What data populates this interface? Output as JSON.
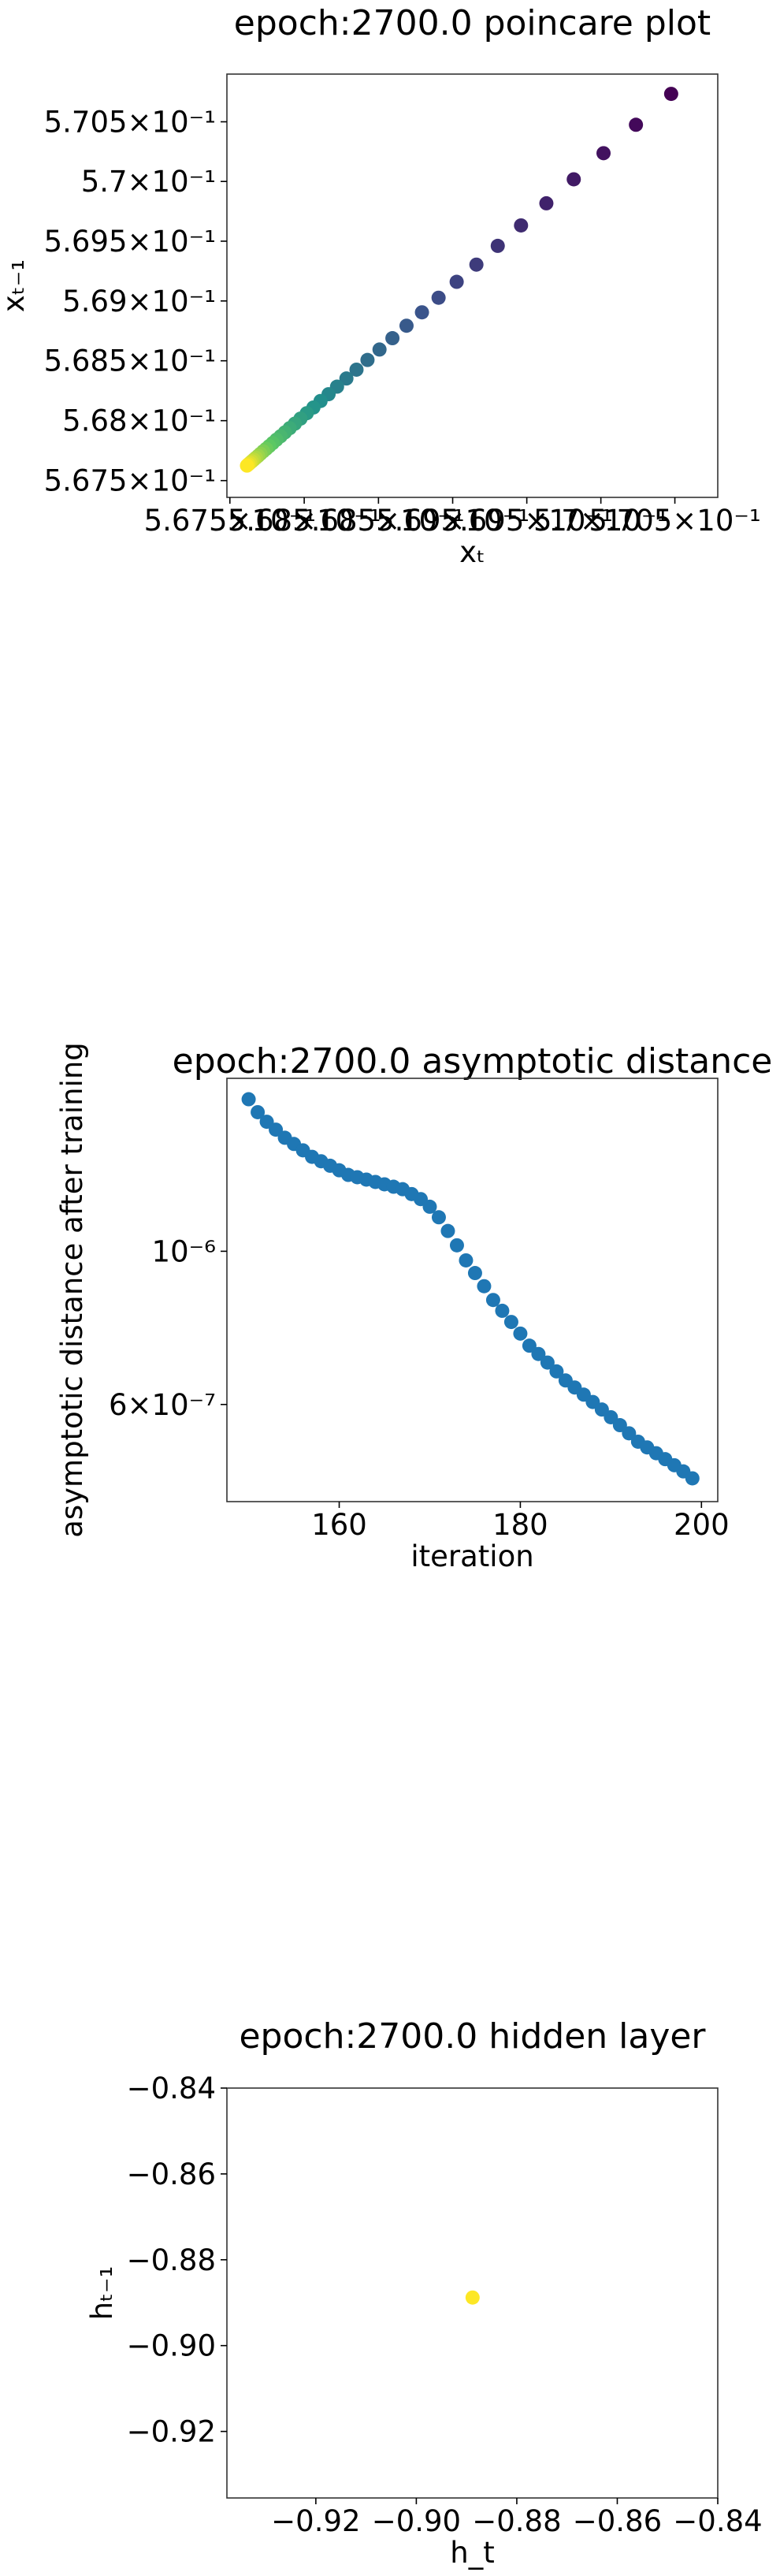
{
  "chart_data": [
    {
      "type": "scatter",
      "title": "epoch:2700.0 poincare plot",
      "x_label": "xₜ",
      "y_label": "xₜ₋₁",
      "colormap": "viridis",
      "xlog": true,
      "ylog": true,
      "x": [
        0.570475,
        0.570237,
        0.570018,
        0.569817,
        0.569632,
        0.569461,
        0.569304,
        0.56916,
        0.569027,
        0.568905,
        0.568793,
        0.568689,
        0.568594,
        0.568507,
        0.568426,
        0.568352,
        0.568284,
        0.568221,
        0.568164,
        0.56811,
        0.568062,
        0.568017,
        0.567975,
        0.567937,
        0.567902,
        0.56787,
        0.567841,
        0.567813,
        0.567788,
        0.567765,
        0.567744,
        0.567724,
        0.567706,
        0.56769,
        0.567675,
        0.567661,
        0.567648,
        0.567636,
        0.567625,
        0.567615
      ],
      "values": [
        0.570734,
        0.570475,
        0.570237,
        0.570018,
        0.569817,
        0.569632,
        0.569461,
        0.569304,
        0.56916,
        0.569027,
        0.568905,
        0.568793,
        0.568689,
        0.568594,
        0.568507,
        0.568426,
        0.568352,
        0.568284,
        0.568221,
        0.568164,
        0.56811,
        0.568062,
        0.568017,
        0.567975,
        0.567937,
        0.567902,
        0.56787,
        0.567841,
        0.567813,
        0.567788,
        0.567765,
        0.567744,
        0.567724,
        0.567706,
        0.56769,
        0.567675,
        0.567661,
        0.567648,
        0.567636,
        0.567625
      ],
      "xlim": [
        0.56748,
        0.57079
      ],
      "ylim": [
        0.56736,
        0.5709
      ],
      "xticks": [
        {
          "value": 0.5675,
          "label": "5.675×10⁻¹"
        },
        {
          "value": 0.568,
          "label": "5.68×10⁻¹"
        },
        {
          "value": 0.5685,
          "label": "5.685×10⁻¹"
        },
        {
          "value": 0.569,
          "label": "5.69×10⁻¹"
        },
        {
          "value": 0.5695,
          "label": "5.695×10⁻¹"
        },
        {
          "value": 0.57,
          "label": "5.7×10⁻¹"
        },
        {
          "value": 0.5705,
          "label": "5.705×10⁻¹"
        }
      ],
      "yticks": [
        {
          "value": 0.5675,
          "label": "5.675×10⁻¹"
        },
        {
          "value": 0.568,
          "label": "5.68×10⁻¹"
        },
        {
          "value": 0.5685,
          "label": "5.685×10⁻¹"
        },
        {
          "value": 0.569,
          "label": "5.69×10⁻¹"
        },
        {
          "value": 0.5695,
          "label": "5.695×10⁻¹"
        },
        {
          "value": 0.57,
          "label": "5.7×10⁻¹"
        },
        {
          "value": 0.5705,
          "label": "5.705×10⁻¹"
        }
      ]
    },
    {
      "type": "scatter",
      "title": "epoch:2700.0 asymptotic distance",
      "x_label": "iteration",
      "y_label": "asymptotic distance after training",
      "color": "#1f77b4",
      "ylog": true,
      "x": [
        150,
        151,
        152,
        153,
        154,
        155,
        156,
        157,
        158,
        159,
        160,
        161,
        162,
        163,
        164,
        165,
        166,
        167,
        168,
        169,
        170,
        171,
        172,
        173,
        174,
        175,
        176,
        177,
        178,
        179,
        180,
        181,
        182,
        183,
        184,
        185,
        186,
        187,
        188,
        189,
        190,
        191,
        192,
        193,
        194,
        195,
        196,
        197,
        198,
        199
      ],
      "values": [
        1.66e-06,
        1.59e-06,
        1.54e-06,
        1.5e-06,
        1.46e-06,
        1.43e-06,
        1.4e-06,
        1.37e-06,
        1.35e-06,
        1.33e-06,
        1.31e-06,
        1.29e-06,
        1.28e-06,
        1.27e-06,
        1.26e-06,
        1.25e-06,
        1.24e-06,
        1.23e-06,
        1.21e-06,
        1.19e-06,
        1.16e-06,
        1.12e-06,
        1.07e-06,
        1.02e-06,
        9.7e-07,
        9.3e-07,
        8.9e-07,
        8.5e-07,
        8.2e-07,
        7.9e-07,
        7.6e-07,
        7.3e-07,
        7.1e-07,
        6.9e-07,
        6.7e-07,
        6.5e-07,
        6.35e-07,
        6.2e-07,
        6.05e-07,
        5.9e-07,
        5.75e-07,
        5.6e-07,
        5.45e-07,
        5.3e-07,
        5.2e-07,
        5.1e-07,
        5e-07,
        4.9e-07,
        4.8e-07,
        4.69e-07
      ],
      "xlim": [
        147.6,
        201.8
      ],
      "ylim": [
        4.34e-07,
        1.78e-06
      ],
      "xticks": [
        160,
        180,
        200
      ],
      "yticks": [
        {
          "value": 1e-06,
          "label": "10⁻⁶"
        },
        {
          "value": 6e-07,
          "label": "6×10⁻⁷"
        }
      ]
    },
    {
      "type": "scatter",
      "title": "epoch:2700.0 hidden layer",
      "x_label": "h_t",
      "y_label": "hₜ₋₁",
      "color": "#fde725",
      "x": [
        -0.8888
      ],
      "values": [
        -0.8888
      ],
      "xlim": [
        -0.9377,
        -0.84
      ],
      "ylim": [
        -0.9355,
        -0.84
      ],
      "xticks": [
        {
          "value": -0.92,
          "label": "−0.92"
        },
        {
          "value": -0.9,
          "label": "−0.90"
        },
        {
          "value": -0.88,
          "label": "−0.88"
        },
        {
          "value": -0.86,
          "label": "−0.86"
        },
        {
          "value": -0.84,
          "label": "−0.84"
        }
      ],
      "yticks": [
        {
          "value": -0.84,
          "label": "−0.84"
        },
        {
          "value": -0.86,
          "label": "−0.86"
        },
        {
          "value": -0.88,
          "label": "−0.88"
        },
        {
          "value": -0.9,
          "label": "−0.90"
        },
        {
          "value": -0.92,
          "label": "−0.92"
        }
      ]
    }
  ]
}
